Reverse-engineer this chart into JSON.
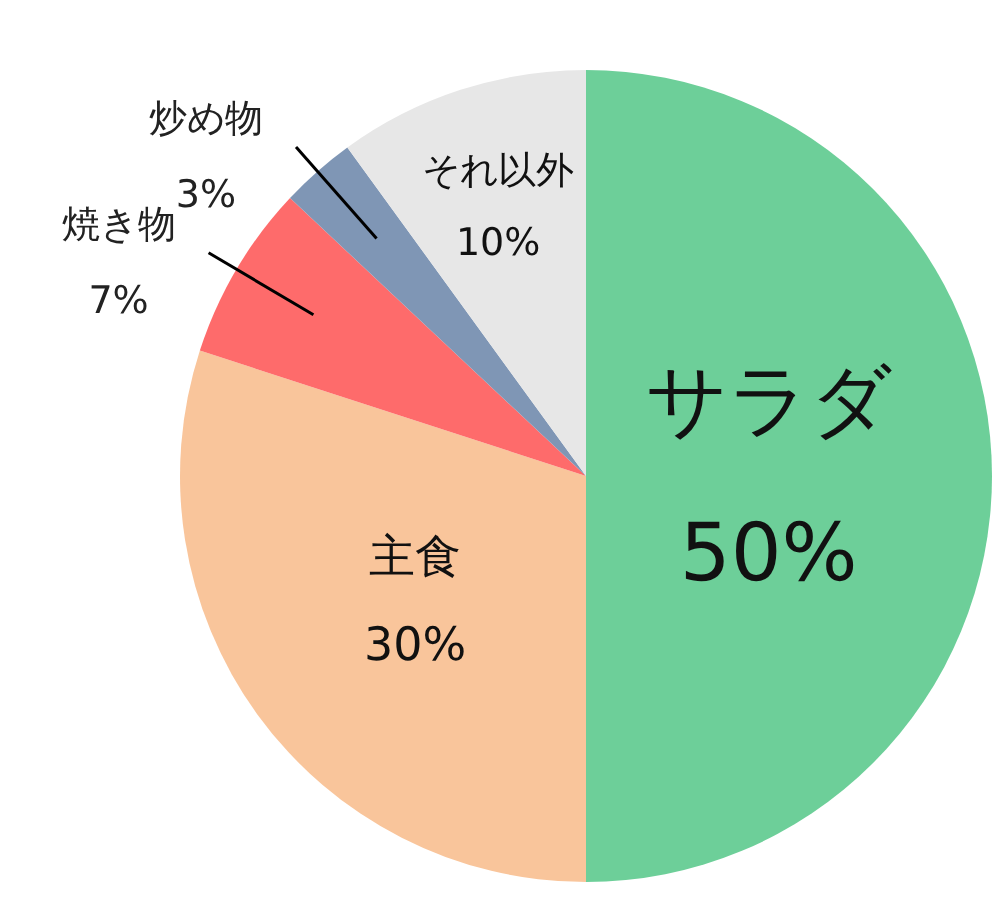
{
  "chart_data": {
    "type": "pie",
    "categories": [
      "サラダ",
      "主食",
      "焼き物",
      "炒め物",
      "それ以外"
    ],
    "values": [
      50,
      30,
      7,
      3,
      10
    ],
    "value_labels": [
      "50%",
      "30%",
      "7%",
      "3%",
      "10%"
    ],
    "colors": [
      "#6dcf99",
      "#f9c59b",
      "#fe6b6b",
      "#7f96b5",
      "#e7e7e7"
    ]
  }
}
